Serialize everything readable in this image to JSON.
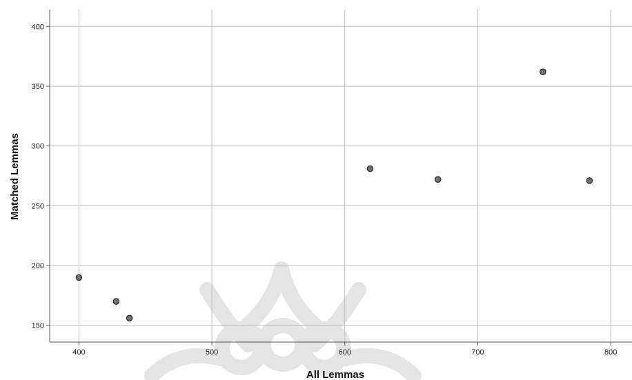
{
  "chart_data": {
    "type": "scatter",
    "xlabel": "All Lemmas",
    "ylabel": "Matched Lemmas",
    "xlim": [
      378,
      816
    ],
    "ylim": [
      136,
      414
    ],
    "x_ticks": [
      400,
      500,
      600,
      700,
      800
    ],
    "y_ticks": [
      150,
      200,
      250,
      300,
      350,
      400
    ],
    "grid": true,
    "series": [
      {
        "points": [
          {
            "x": 400,
            "y": 190
          },
          {
            "x": 428,
            "y": 170
          },
          {
            "x": 438,
            "y": 156
          },
          {
            "x": 619,
            "y": 281
          },
          {
            "x": 670,
            "y": 272
          },
          {
            "x": 749,
            "y": 362
          },
          {
            "x": 784,
            "y": 271
          }
        ],
        "marker_color": "#6f6f6f",
        "marker_edge": "#2b2b2b"
      }
    ]
  },
  "colors": {
    "grid": "#bdbdbd",
    "axis": "#555555",
    "watermark": "#e2e2e2"
  },
  "watermark_icon": "ornamental-watermark-logo"
}
